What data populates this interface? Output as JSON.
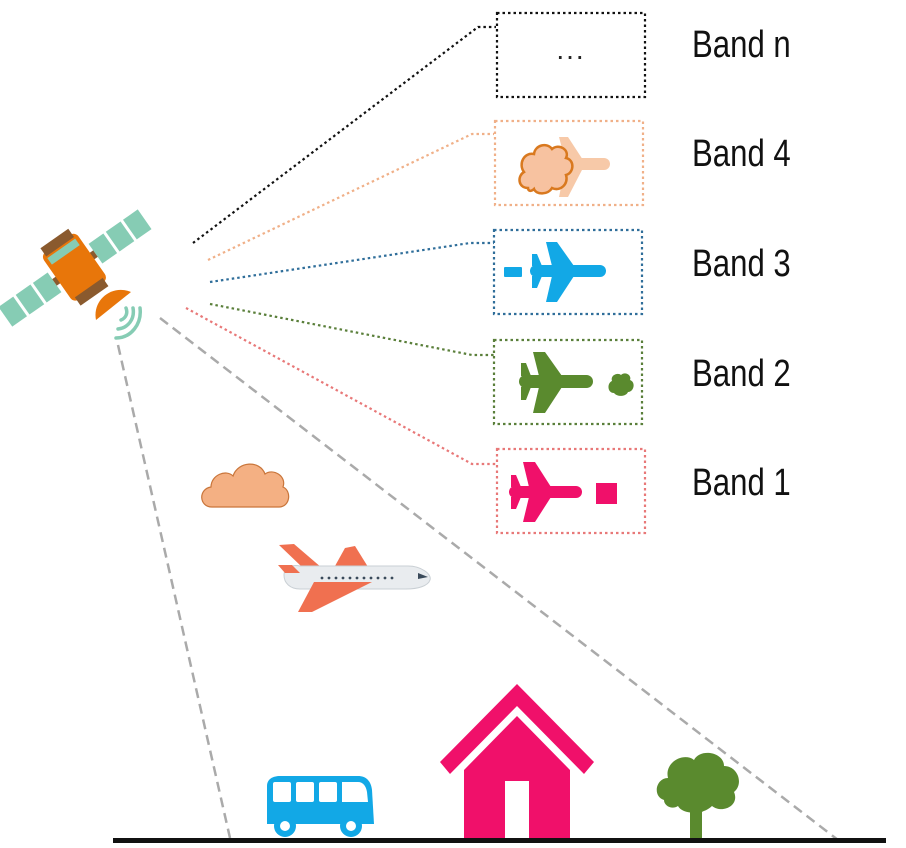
{
  "bands": [
    {
      "id": "n",
      "label": "Band n",
      "color": "#111111",
      "content": "..."
    },
    {
      "id": "4",
      "label": "Band 4",
      "color": "#f0b088"
    },
    {
      "id": "3",
      "label": "Band 3",
      "color": "#2f6e9a"
    },
    {
      "id": "2",
      "label": "Band 2",
      "color": "#5a7f3a"
    },
    {
      "id": "1",
      "label": "Band 1",
      "color": "#e87878"
    }
  ],
  "colors": {
    "cloud": "#f4b083",
    "plane_body": "#e9ecef",
    "plane_wing": "#f07050",
    "house": "#f0106a",
    "bus": "#12a8e6",
    "tree": "#5a8a2e",
    "satellite_body": "#e8760a",
    "satellite_panel": "#86ccb4",
    "ground": "#111111",
    "fov_line": "#aaaaaa"
  },
  "icons": [
    "satellite-icon",
    "cloud-icon",
    "airplane-icon",
    "house-icon",
    "bus-icon",
    "tree-icon"
  ]
}
